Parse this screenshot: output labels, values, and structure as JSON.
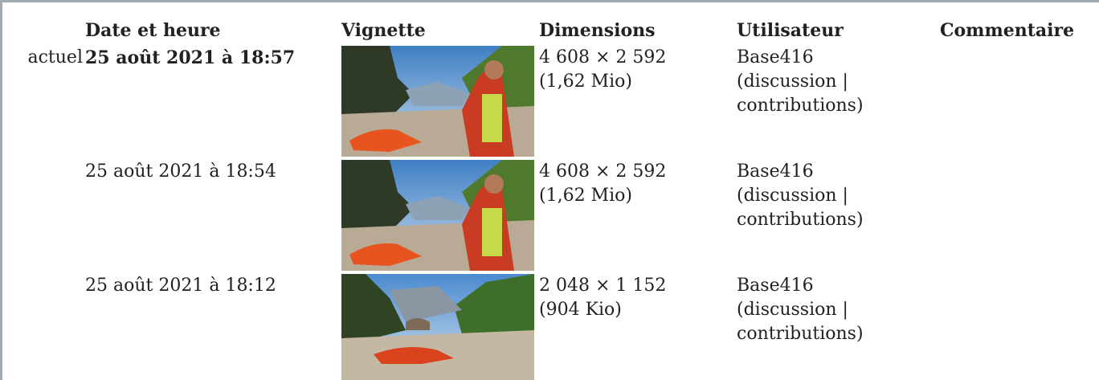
{
  "table": {
    "headers": [
      "Date et heure",
      "Vignette",
      "Dimensions",
      "Utilisateur",
      "Commentaire"
    ],
    "rows": [
      {
        "status": "actuel",
        "date": "25 août 2021 à 18:57",
        "dimensions": "4 608 × 2 592",
        "size": "(1,62 Mio)",
        "user": "Base416",
        "user_links": "(discussion | contributions)"
      },
      {
        "date": "25 août 2021 à 18:54",
        "dimensions": "4 608 × 2 592",
        "size": "(1,62 Mio)",
        "user": "Base416",
        "user_links": "(discussion | contributions)"
      },
      {
        "date": "25 août 2021 à 18:12",
        "dimensions": "2 048 × 1 152",
        "size": "(904 Kio)",
        "user": "Base416",
        "user_links": "(discussion | contributions)"
      }
    ]
  }
}
